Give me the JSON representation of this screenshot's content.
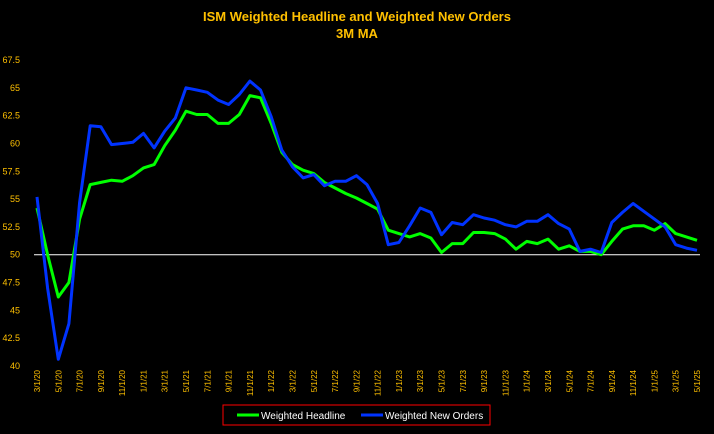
{
  "chart_data": {
    "type": "line",
    "title": "ISM Weighted Headline and Weighted New Orders",
    "subtitle": "3M MA",
    "ylim": [
      40,
      67.5
    ],
    "yticks": [
      "40",
      "42.5",
      "45",
      "47.5",
      "50",
      "52.5",
      "55",
      "57.5",
      "60",
      "62.5",
      "65",
      "67.5"
    ],
    "xtick_labels": [
      "3/1/20",
      "5/1/20",
      "7/1/20",
      "9/1/20",
      "11/1/20",
      "1/1/21",
      "3/1/21",
      "5/1/21",
      "7/1/21",
      "9/1/21",
      "11/1/21",
      "1/1/22",
      "3/1/22",
      "5/1/22",
      "7/1/22",
      "9/1/22",
      "11/1/22",
      "1/1/23",
      "3/1/23",
      "5/1/23",
      "7/1/23",
      "9/1/23",
      "11/1/23",
      "1/1/24",
      "3/1/24",
      "5/1/24",
      "7/1/24",
      "9/1/24",
      "11/1/24",
      "1/1/25",
      "3/1/25",
      "5/1/25"
    ],
    "x": [
      "3/1/20",
      "4/1/20",
      "5/1/20",
      "6/1/20",
      "7/1/20",
      "8/1/20",
      "9/1/20",
      "10/1/20",
      "11/1/20",
      "12/1/20",
      "1/1/21",
      "2/1/21",
      "3/1/21",
      "4/1/21",
      "5/1/21",
      "6/1/21",
      "7/1/21",
      "8/1/21",
      "9/1/21",
      "10/1/21",
      "11/1/21",
      "12/1/21",
      "1/1/22",
      "2/1/22",
      "3/1/22",
      "4/1/22",
      "5/1/22",
      "6/1/22",
      "7/1/22",
      "8/1/22",
      "9/1/22",
      "10/1/22",
      "11/1/22",
      "12/1/22",
      "1/1/23",
      "2/1/23",
      "3/1/23",
      "4/1/23",
      "5/1/23",
      "6/1/23",
      "7/1/23",
      "8/1/23",
      "9/1/23",
      "10/1/23",
      "11/1/23",
      "12/1/23",
      "1/1/24",
      "2/1/24",
      "3/1/24",
      "4/1/24",
      "5/1/24",
      "6/1/24",
      "7/1/24",
      "8/1/24",
      "9/1/24",
      "10/1/24",
      "11/1/24",
      "12/1/24",
      "1/1/25",
      "2/1/25",
      "3/1/25",
      "4/1/25",
      "5/1/25"
    ],
    "series": [
      {
        "name": "Weighted Headline",
        "color": "#00FF00",
        "values": [
          54.2,
          50,
          46.2,
          47.5,
          53.2,
          56.3,
          56.5,
          56.7,
          56.6,
          57.1,
          57.8,
          58.1,
          59.8,
          61.2,
          62.9,
          62.6,
          62.6,
          61.8,
          61.8,
          62.6,
          64.3,
          64.1,
          61.8,
          59.2,
          58.1,
          57.6,
          57.3,
          56.5,
          56,
          55.5,
          55.1,
          54.6,
          54.1,
          52.2,
          51.9,
          51.6,
          51.9,
          51.5,
          50.2,
          51,
          51,
          52,
          52,
          51.9,
          51.4,
          50.5,
          51.2,
          51,
          51.4,
          50.5,
          50.8,
          50.3,
          50.3,
          50,
          51.2,
          52.3,
          52.6,
          52.6,
          52.2,
          52.8,
          51.9,
          51.6,
          51.3
        ]
      },
      {
        "name": "Weighted New Orders",
        "color": "#0033FF",
        "values": [
          55.2,
          47,
          40.6,
          43.8,
          54.7,
          61.6,
          61.5,
          59.9,
          60,
          60.1,
          60.9,
          59.6,
          61.1,
          62.3,
          65,
          64.8,
          64.6,
          63.9,
          63.5,
          64.4,
          65.6,
          64.8,
          62.4,
          59.4,
          57.9,
          56.9,
          57.2,
          56.2,
          56.6,
          56.6,
          57.1,
          56.3,
          54.6,
          50.9,
          51.1,
          52.6,
          54.2,
          53.8,
          51.8,
          52.9,
          52.7,
          53.6,
          53.3,
          53.1,
          52.7,
          52.5,
          53,
          53,
          53.6,
          52.8,
          52.3,
          50.3,
          50.5,
          50.2,
          52.9,
          53.8,
          54.6,
          53.9,
          53.2,
          52.5,
          50.9,
          50.6,
          50.4
        ]
      }
    ],
    "reference_line": {
      "y": 50,
      "color": "#FFFFFF"
    },
    "grid": false,
    "legend_position": "bottom",
    "colors": {
      "background": "#000000",
      "text": "#FFC000",
      "legend_border": "#FF0000"
    }
  }
}
